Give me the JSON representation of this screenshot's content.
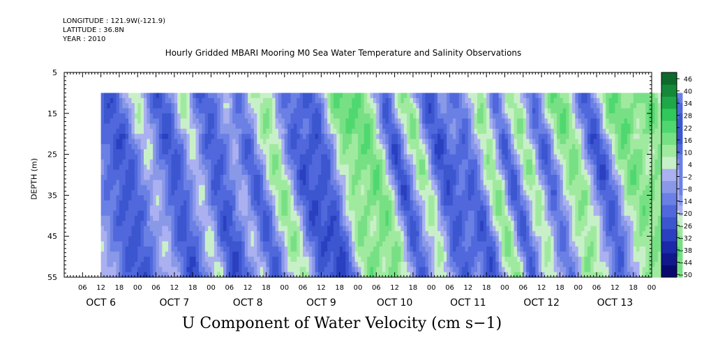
{
  "header": {
    "longitude": "LONGITUDE : 121.9W(-121.9)",
    "latitude": "LATITUDE : 36.8N",
    "year": "YEAR : 2010"
  },
  "chart_data": {
    "type": "heatmap",
    "title": "Hourly Gridded MBARI Mooring M0 Sea Water Temperature and Salinity Observations",
    "xlabel": "U Component of Water Velocity (cm s−1)",
    "ylabel": "DEPTH (m)",
    "x_hours_range": [
      0,
      192
    ],
    "x_hour_ticks": [
      "06",
      "12",
      "18",
      "00",
      "06",
      "12",
      "18",
      "00",
      "06",
      "12",
      "18",
      "00",
      "06",
      "12",
      "18",
      "00",
      "06",
      "12",
      "18",
      "00",
      "06",
      "12",
      "18",
      "00",
      "06",
      "12",
      "18",
      "00",
      "06",
      "12",
      "18",
      "00"
    ],
    "x_day_labels": [
      "OCT  6",
      "OCT  7",
      "OCT  8",
      "OCT  9",
      "OCT 10",
      "OCT 11",
      "OCT 12",
      "OCT 13"
    ],
    "y_ticks": [
      5,
      15,
      25,
      35,
      45,
      55
    ],
    "ylim": [
      55,
      5
    ],
    "data_depth_range": [
      10,
      55
    ],
    "data_time_range_hours": [
      12,
      202
    ],
    "colorbar": {
      "levels": [
        -50,
        -44,
        -38,
        -32,
        -26,
        -20,
        -14,
        -8,
        -2,
        4,
        10,
        16,
        22,
        28,
        34,
        40,
        46
      ],
      "labels": [
        "46",
        "40",
        "34",
        "28",
        "22",
        "16",
        "10",
        "4",
        "−2",
        "−8",
        "−14",
        "−20",
        "−26",
        "−32",
        "−38",
        "−44",
        "−50"
      ],
      "colors": [
        "#0a0a6e",
        "#10188c",
        "#1a2aa8",
        "#2a40c0",
        "#3c56d0",
        "#5068dc",
        "#6a80e4",
        "#8a98e8",
        "#aab0f0",
        "#c8f0c8",
        "#a0eaa0",
        "#78e084",
        "#50d870",
        "#30c85a",
        "#1fa848",
        "#16883a",
        "#0e6a2c"
      ]
    }
  }
}
